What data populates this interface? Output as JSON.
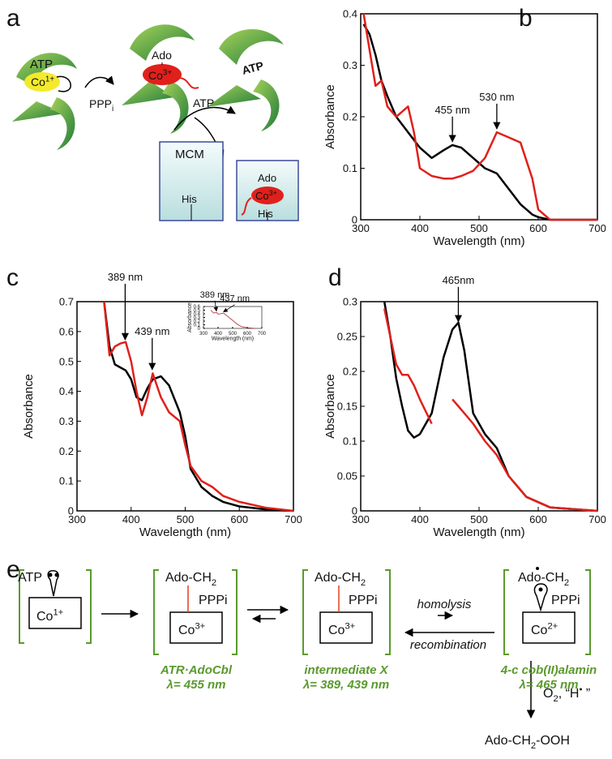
{
  "panel_labels": [
    "a",
    "b",
    "c",
    "d",
    "e"
  ],
  "panel_a": {
    "atp": "ATP",
    "co1": "Co",
    "co1_charge": "1+",
    "ppp": "PPP",
    "ppp_sub": "i",
    "ado": "Ado",
    "co3": "Co",
    "co3_charge": "3+",
    "arrow_label": "ATP",
    "bound_atp": "ATP",
    "mcm": "MCM",
    "his1": "His",
    "ado2": "Ado",
    "co3b": "Co",
    "co3b_charge": "3+",
    "his2": "His"
  },
  "chart_data": [
    {
      "type": "line",
      "xlabel": "Wavelength (nm)",
      "ylabel": "Absorbance",
      "x": [
        305,
        315,
        325,
        335,
        345,
        360,
        370,
        380,
        390,
        400,
        420,
        440,
        455,
        470,
        490,
        510,
        530,
        550,
        570,
        590,
        600,
        620,
        700
      ],
      "series": [
        {
          "color": "#000000",
          "values": [
            0.38,
            0.36,
            0.32,
            0.27,
            0.24,
            0.2,
            0.185,
            0.17,
            0.155,
            0.14,
            0.12,
            0.135,
            0.145,
            0.14,
            0.12,
            0.1,
            0.09,
            0.06,
            0.03,
            0.01,
            0.005,
            0,
            0
          ]
        },
        {
          "color": "#e0201b",
          "values": [
            0.4,
            0.33,
            0.26,
            0.27,
            0.22,
            0.2,
            0.21,
            0.22,
            0.17,
            0.1,
            0.085,
            0.08,
            0.08,
            0.085,
            0.095,
            0.12,
            0.17,
            0.16,
            0.15,
            0.08,
            0.02,
            0,
            0
          ]
        }
      ],
      "annotations": [
        {
          "text": "455 nm",
          "x": 455,
          "y": 0.15
        },
        {
          "text": "530 nm",
          "x": 530,
          "y": 0.175
        }
      ],
      "xlim": [
        300,
        700
      ],
      "ylim": [
        0,
        0.4
      ],
      "xticks": [
        300,
        400,
        500,
        600,
        700
      ],
      "yticks": [
        0,
        0.1,
        0.2,
        0.3,
        0.4
      ]
    },
    {
      "type": "line",
      "xlabel": "Wavelength (nm)",
      "ylabel": "Absorbance",
      "x": [
        350,
        360,
        370,
        380,
        390,
        400,
        410,
        420,
        430,
        440,
        455,
        470,
        490,
        500,
        510,
        530,
        550,
        570,
        600,
        650,
        700
      ],
      "series": [
        {
          "color": "#000000",
          "values": [
            0.7,
            0.55,
            0.49,
            0.48,
            0.47,
            0.44,
            0.38,
            0.37,
            0.41,
            0.44,
            0.45,
            0.42,
            0.33,
            0.25,
            0.14,
            0.08,
            0.05,
            0.03,
            0.015,
            0.005,
            0
          ]
        },
        {
          "color": "#e0201b",
          "values": [
            0.7,
            0.52,
            0.55,
            0.56,
            0.565,
            0.5,
            0.4,
            0.32,
            0.38,
            0.46,
            0.38,
            0.33,
            0.3,
            0.22,
            0.15,
            0.1,
            0.08,
            0.05,
            0.03,
            0.01,
            0
          ]
        }
      ],
      "annotations": [
        {
          "text": "389 nm",
          "x": 389,
          "y": 0.57
        },
        {
          "text": "439 nm",
          "x": 439,
          "y": 0.47
        }
      ],
      "xlim": [
        300,
        700
      ],
      "ylim": [
        0,
        0.7
      ],
      "xticks": [
        300,
        400,
        500,
        600,
        700
      ],
      "yticks": [
        0,
        0.1,
        0.2,
        0.3,
        0.4,
        0.5,
        0.6,
        0.7
      ]
    },
    {
      "type": "line",
      "xlabel": "Wavelength (nm)",
      "ylabel": "Absorbance",
      "x": [
        350,
        370,
        389,
        400,
        415,
        437,
        460,
        500,
        530,
        560,
        600,
        650
      ],
      "series": [
        {
          "color": "#b0202a",
          "values": [
            0.5,
            0.42,
            0.44,
            0.39,
            0.4,
            0.42,
            0.35,
            0.22,
            0.12,
            0.05,
            0.02,
            0
          ]
        }
      ],
      "annotations": [
        {
          "text": "389 nm",
          "x": 389,
          "y": 0.45
        },
        {
          "text": "437 nm",
          "x": 437,
          "y": 0.43
        }
      ],
      "xlim": [
        300,
        700
      ],
      "ylim": [
        0,
        0.6
      ],
      "xticks": [
        300,
        400,
        500,
        600,
        700
      ],
      "yticks": [
        0,
        0.1,
        0.2,
        0.3,
        0.4,
        0.5,
        0.6
      ]
    },
    {
      "type": "line",
      "xlabel": "Wavelength (nm)",
      "ylabel": "Absorbance",
      "x": [
        340,
        350,
        360,
        370,
        380,
        390,
        400,
        420,
        440,
        455,
        465,
        475,
        490,
        510,
        530,
        550,
        580,
        620,
        700
      ],
      "series": [
        {
          "color": "#000000",
          "values": [
            0.3,
            0.25,
            0.19,
            0.15,
            0.115,
            0.105,
            0.11,
            0.14,
            0.22,
            0.26,
            0.27,
            0.23,
            0.14,
            0.11,
            0.09,
            0.05,
            0.02,
            0.005,
            0
          ]
        },
        {
          "color": "#e0201b",
          "values": [
            0.29,
            0.25,
            0.21,
            0.195,
            0.195,
            0.18,
            0.16,
            0.125,
            null,
            0.16,
            0.15,
            0.14,
            0.125,
            0.1,
            0.08,
            0.05,
            0.02,
            0.005,
            0
          ]
        }
      ],
      "annotations": [
        {
          "text": "465nm",
          "x": 465,
          "y": 0.27
        }
      ],
      "xlim": [
        300,
        700
      ],
      "ylim": [
        0,
        0.3
      ],
      "xticks": [
        300,
        400,
        500,
        600,
        700
      ],
      "yticks": [
        0,
        0.05,
        0.1,
        0.15,
        0.2,
        0.25,
        0.3
      ]
    }
  ],
  "panel_e": {
    "box1": {
      "ligand": "ATP",
      "metal": "Co",
      "charge": "1+"
    },
    "box2": {
      "ligand": "Ado-CH",
      "ligand_sub": "2",
      "side": "PPPi",
      "metal": "Co",
      "charge": "3+",
      "name": "ATR·AdoCbl",
      "lambda": "λ= 455 nm"
    },
    "box3": {
      "ligand": "Ado-CH",
      "ligand_sub": "2",
      "side": "PPPi",
      "metal": "Co",
      "charge": "3+",
      "name": "intermediate X",
      "lambda": "λ= 389, 439 nm"
    },
    "box4": {
      "ligand": "Ado-CH",
      "ligand_sub": "2",
      "side": "PPPi",
      "metal": "Co",
      "charge": "2+",
      "name": "4-c cob(II)alamin",
      "lambda": "λ= 465 nm"
    },
    "forward": "homolysis",
    "reverse": "recombination",
    "reagent": "O",
    "reagent_sub": "2",
    "reagent_rest": ", “H",
    "reagent_sup": "•",
    "reagent_end": " ”",
    "product": "Ado-CH",
    "product_sub": "2",
    "product_rest": "-OOH"
  }
}
